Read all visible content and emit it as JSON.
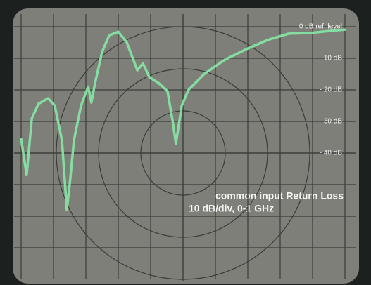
{
  "chart_data": {
    "type": "line",
    "annotations": [
      "common input Return Loss",
      "10 dB/div, 0-1 GHz"
    ],
    "xlim": [
      0,
      1
    ],
    "ylim": [
      -80,
      4
    ],
    "yticks": [
      {
        "value": 0,
        "label": "0 dB ref. level"
      },
      {
        "value": -10,
        "label": "- 10 dB"
      },
      {
        "value": -20,
        "label": "- 20 dB"
      },
      {
        "value": -30,
        "label": "- 30 dB"
      },
      {
        "value": -40,
        "label": "- 40 dB"
      }
    ],
    "grid": true,
    "series": [
      {
        "color": "#86e8a6",
        "x": [
          0,
          0.017,
          0.033,
          0.054,
          0.083,
          0.104,
          0.126,
          0.141,
          0.152,
          0.163,
          0.185,
          0.207,
          0.217,
          0.228,
          0.25,
          0.272,
          0.3,
          0.326,
          0.359,
          0.376,
          0.396,
          0.424,
          0.452,
          0.467,
          0.478,
          0.496,
          0.517,
          0.565,
          0.63,
          0.696,
          0.761,
          0.826,
          0.891,
          0.957,
          1
        ],
        "values": [
          -35.5,
          -47,
          -29,
          -24.4,
          -22.7,
          -25,
          -36,
          -58,
          -48,
          -36,
          -25,
          -19,
          -24,
          -18,
          -8,
          -2.7,
          -1.6,
          -4.9,
          -13.8,
          -11.6,
          -16,
          -17.8,
          -20.4,
          -29.3,
          -37,
          -25,
          -20,
          -15,
          -10.4,
          -7.1,
          -4.2,
          -2.2,
          -2,
          -1.3,
          -0.9
        ]
      }
    ]
  }
}
